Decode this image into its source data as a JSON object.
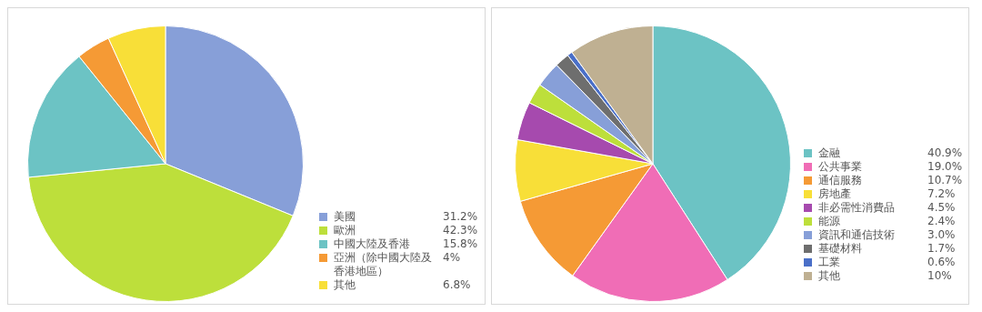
{
  "chart_data": [
    {
      "type": "pie",
      "categories": [
        "美國",
        "歐洲",
        "中國大陸及香港",
        "亞洲（除中國大陸及香港地區）",
        "其他"
      ],
      "values": [
        31.2,
        42.3,
        15.8,
        4,
        6.8
      ],
      "value_labels": [
        "31.2%",
        "42.3%",
        "15.8%",
        "4%",
        "6.8%"
      ],
      "colors": [
        "#879fd8",
        "#bddf3b",
        "#6cc3c4",
        "#f59a35",
        "#f8df38"
      ],
      "legend": "bottom right"
    },
    {
      "type": "pie",
      "categories": [
        "金融",
        "公共事業",
        "通信服務",
        "房地產",
        "非必需性消費品",
        "能源",
        "資訊和通信技術",
        "基礎材料",
        "工業",
        "其他"
      ],
      "values": [
        40.9,
        19.0,
        10.7,
        7.2,
        4.5,
        2.4,
        3.0,
        1.7,
        0.6,
        10
      ],
      "value_labels": [
        "40.9%",
        "19.0%",
        "10.7%",
        "7.2%",
        "4.5%",
        "2.4%",
        "3.0%",
        "1.7%",
        "0.6%",
        "10%"
      ],
      "colors": [
        "#6cc3c4",
        "#f06db6",
        "#f59a35",
        "#f8df38",
        "#a64aae",
        "#bddf3b",
        "#879fd8",
        "#6e6e6e",
        "#4a6fc8",
        "#bfb092"
      ],
      "legend": "bottom right"
    }
  ]
}
